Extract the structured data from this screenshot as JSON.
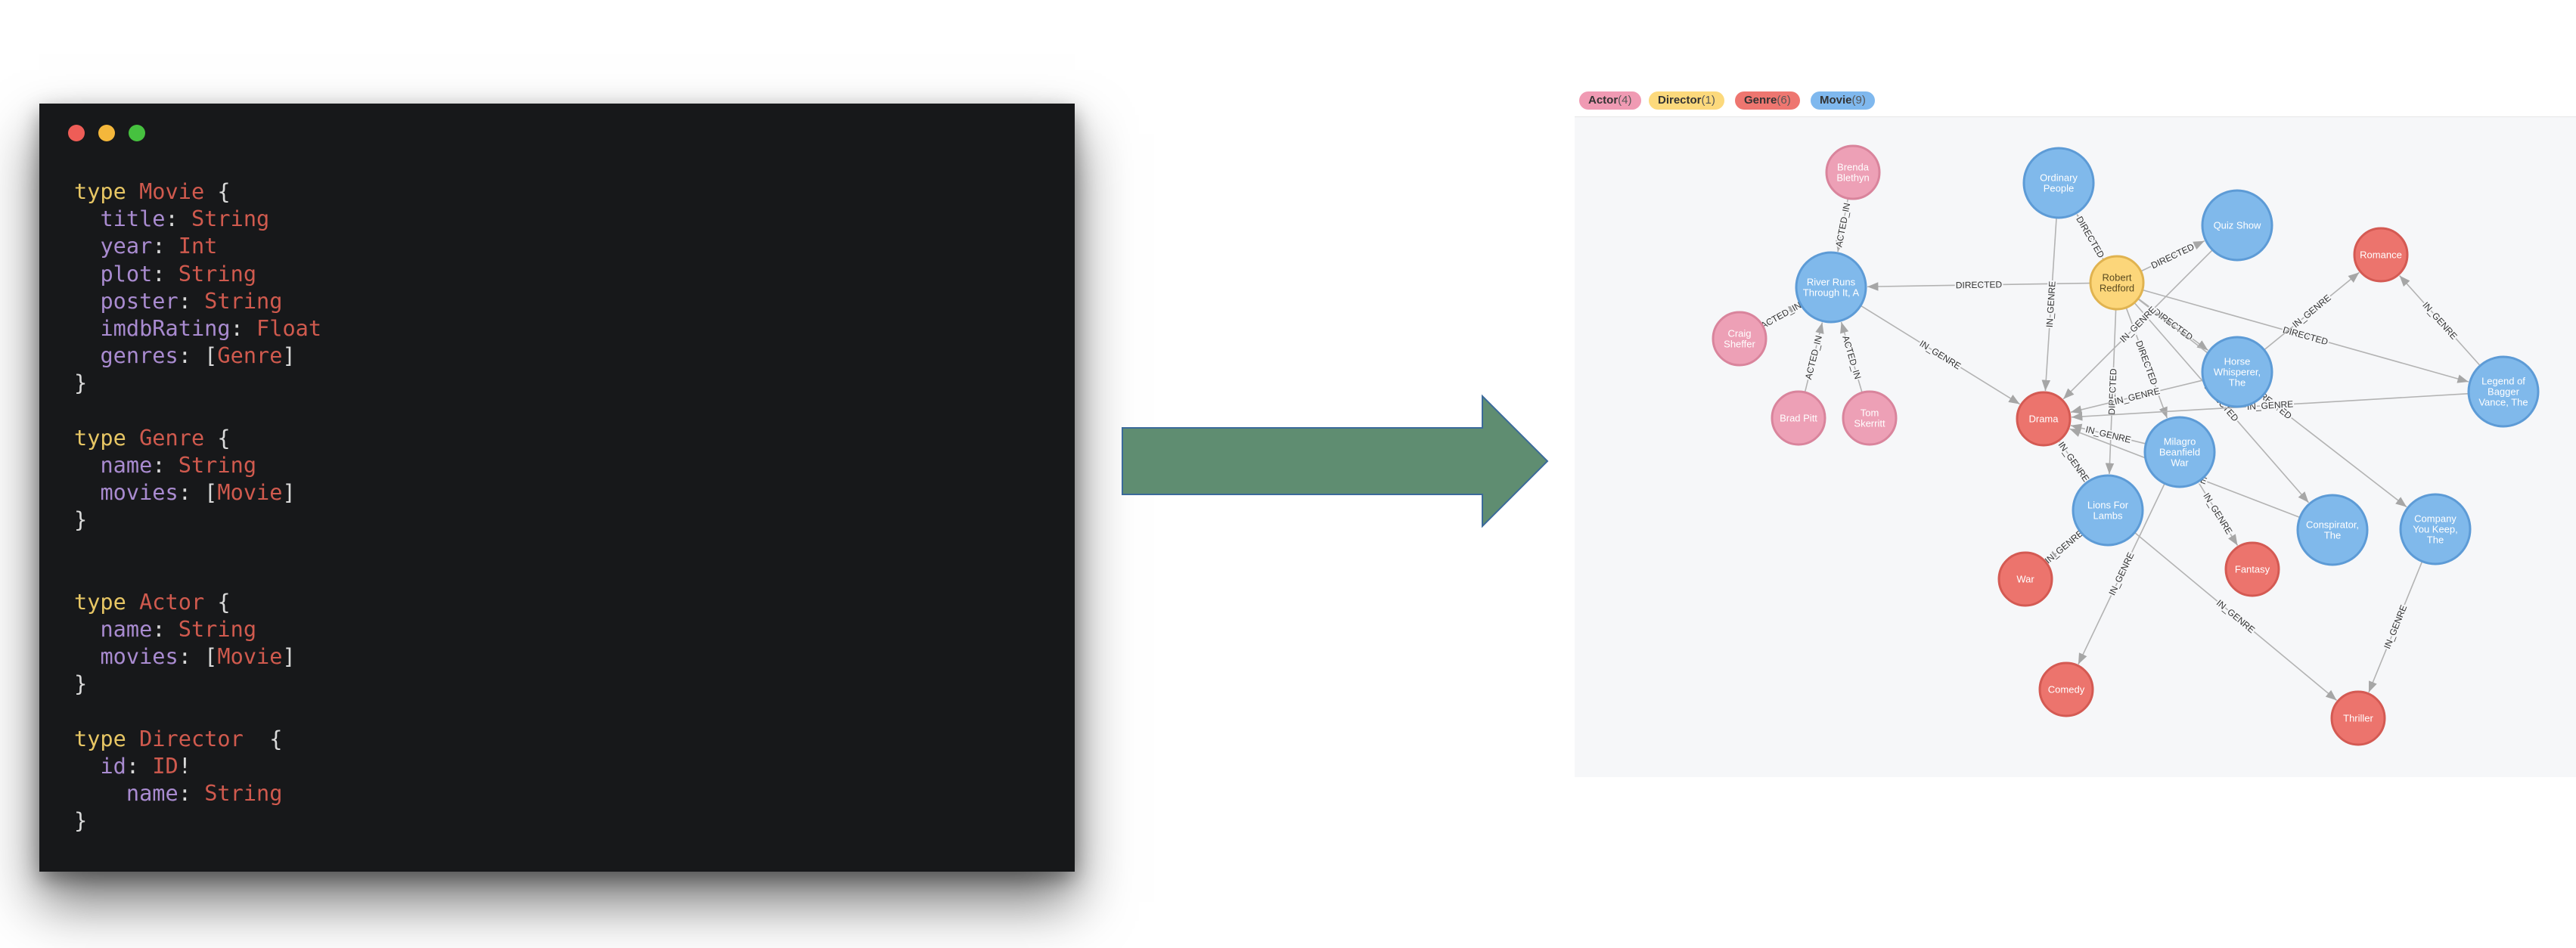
{
  "editor": {
    "window_dots": {
      "close": "#ee5d57",
      "minimize": "#f4b73b",
      "zoom": "#46c13f"
    },
    "colors": {
      "keyword": "#e7c664",
      "type": "#d05a4e",
      "field": "#a98bd0",
      "punct": "#d9d9d9"
    },
    "lines": [
      [
        [
          "kw",
          "type"
        ],
        [
          "pn",
          " "
        ],
        [
          "ty",
          "Movie"
        ],
        [
          "pn",
          " {"
        ]
      ],
      [
        [
          "pn",
          "  "
        ],
        [
          "fd",
          "title"
        ],
        [
          "pn",
          ": "
        ],
        [
          "ty",
          "String"
        ]
      ],
      [
        [
          "pn",
          "  "
        ],
        [
          "fd",
          "year"
        ],
        [
          "pn",
          ": "
        ],
        [
          "ty",
          "Int"
        ]
      ],
      [
        [
          "pn",
          "  "
        ],
        [
          "fd",
          "plot"
        ],
        [
          "pn",
          ": "
        ],
        [
          "ty",
          "String"
        ]
      ],
      [
        [
          "pn",
          "  "
        ],
        [
          "fd",
          "poster"
        ],
        [
          "pn",
          ": "
        ],
        [
          "ty",
          "String"
        ]
      ],
      [
        [
          "pn",
          "  "
        ],
        [
          "fd",
          "imdbRating"
        ],
        [
          "pn",
          ": "
        ],
        [
          "ty",
          "Float"
        ]
      ],
      [
        [
          "pn",
          "  "
        ],
        [
          "fd",
          "genres"
        ],
        [
          "pn",
          ": ["
        ],
        [
          "ty",
          "Genre"
        ],
        [
          "pn",
          "]"
        ]
      ],
      [
        [
          "pn",
          "}"
        ]
      ],
      [],
      [
        [
          "kw",
          "type"
        ],
        [
          "pn",
          " "
        ],
        [
          "ty",
          "Genre"
        ],
        [
          "pn",
          " {"
        ]
      ],
      [
        [
          "pn",
          "  "
        ],
        [
          "fd",
          "name"
        ],
        [
          "pn",
          ": "
        ],
        [
          "ty",
          "String"
        ]
      ],
      [
        [
          "pn",
          "  "
        ],
        [
          "fd",
          "movies"
        ],
        [
          "pn",
          ": ["
        ],
        [
          "ty",
          "Movie"
        ],
        [
          "pn",
          "]"
        ]
      ],
      [
        [
          "pn",
          "}"
        ]
      ],
      [],
      [],
      [
        [
          "kw",
          "type"
        ],
        [
          "pn",
          " "
        ],
        [
          "ty",
          "Actor"
        ],
        [
          "pn",
          " {"
        ]
      ],
      [
        [
          "pn",
          "  "
        ],
        [
          "fd",
          "name"
        ],
        [
          "pn",
          ": "
        ],
        [
          "ty",
          "String"
        ]
      ],
      [
        [
          "pn",
          "  "
        ],
        [
          "fd",
          "movies"
        ],
        [
          "pn",
          ": ["
        ],
        [
          "ty",
          "Movie"
        ],
        [
          "pn",
          "]"
        ]
      ],
      [
        [
          "pn",
          "}"
        ]
      ],
      [],
      [
        [
          "kw",
          "type"
        ],
        [
          "pn",
          " "
        ],
        [
          "ty",
          "Director"
        ],
        [
          "pn",
          "  {"
        ]
      ],
      [
        [
          "pn",
          "  "
        ],
        [
          "fd",
          "id"
        ],
        [
          "pn",
          ": "
        ],
        [
          "ty",
          "ID"
        ],
        [
          "pn",
          "!"
        ]
      ],
      [
        [
          "pn",
          "    "
        ],
        [
          "fd",
          "name"
        ],
        [
          "pn",
          ": "
        ],
        [
          "ty",
          "String"
        ]
      ],
      [
        [
          "pn",
          "}"
        ]
      ]
    ]
  },
  "arrow": {
    "fill": "#5f8d71",
    "stroke": "#3b6a9a"
  },
  "graph": {
    "legend": [
      {
        "label": "Actor",
        "count": "(4)",
        "color": "#f09ab3"
      },
      {
        "label": "Director",
        "count": "(1)",
        "color": "#fcd97c"
      },
      {
        "label": "Genre",
        "count": "(6)",
        "color": "#ee7670"
      },
      {
        "label": "Movie",
        "count": "(9)",
        "color": "#7fb8ee"
      }
    ],
    "kind_colors": {
      "actor": {
        "fill": "#eda0b6",
        "stroke": "#d9849c"
      },
      "director": {
        "fill": "#fcd67a",
        "stroke": "#e0b350"
      },
      "genre": {
        "fill": "#ec746d",
        "stroke": "#d45a53"
      },
      "movie": {
        "fill": "#80b9eb",
        "stroke": "#5d9bd6"
      }
    },
    "nodes": [
      {
        "id": "brenda",
        "kind": "actor",
        "label": [
          "Brenda",
          "Blethyn"
        ]
      },
      {
        "id": "craig",
        "kind": "actor",
        "label": [
          "Craig",
          "Sheffer"
        ]
      },
      {
        "id": "brad",
        "kind": "actor",
        "label": [
          "Brad Pitt"
        ]
      },
      {
        "id": "tom",
        "kind": "actor",
        "label": [
          "Tom",
          "Skerritt"
        ]
      },
      {
        "id": "robert",
        "kind": "director",
        "label": [
          "Robert",
          "Redford"
        ]
      },
      {
        "id": "river",
        "kind": "movie",
        "label": [
          "River Runs",
          "Through It, A"
        ]
      },
      {
        "id": "ordinary",
        "kind": "movie",
        "label": [
          "Ordinary",
          "People"
        ]
      },
      {
        "id": "quiz",
        "kind": "movie",
        "label": [
          "Quiz Show"
        ]
      },
      {
        "id": "horse",
        "kind": "movie",
        "label": [
          "Horse",
          "Whisperer,",
          "The"
        ]
      },
      {
        "id": "legend",
        "kind": "movie",
        "label": [
          "Legend of",
          "Bagger",
          "Vance, The"
        ]
      },
      {
        "id": "milagro",
        "kind": "movie",
        "label": [
          "Milagro",
          "Beanfield",
          "War"
        ]
      },
      {
        "id": "lions",
        "kind": "movie",
        "label": [
          "Lions For",
          "Lambs"
        ]
      },
      {
        "id": "conspirator",
        "kind": "movie",
        "label": [
          "Conspirator,",
          "The"
        ]
      },
      {
        "id": "company",
        "kind": "movie",
        "label": [
          "Company",
          "You Keep,",
          "The"
        ]
      },
      {
        "id": "drama",
        "kind": "genre",
        "label": [
          "Drama"
        ]
      },
      {
        "id": "romance",
        "kind": "genre",
        "label": [
          "Romance"
        ]
      },
      {
        "id": "war",
        "kind": "genre",
        "label": [
          "War"
        ]
      },
      {
        "id": "fantasy",
        "kind": "genre",
        "label": [
          "Fantasy"
        ]
      },
      {
        "id": "comedy",
        "kind": "genre",
        "label": [
          "Comedy"
        ]
      },
      {
        "id": "thriller",
        "kind": "genre",
        "label": [
          "Thriller"
        ]
      }
    ],
    "edges": [
      {
        "from": "brenda",
        "to": "river",
        "label": "ACTED_IN"
      },
      {
        "from": "craig",
        "to": "river",
        "label": "ACTED_IN"
      },
      {
        "from": "brad",
        "to": "river",
        "label": "ACTED_IN"
      },
      {
        "from": "tom",
        "to": "river",
        "label": "ACTED_IN"
      },
      {
        "from": "robert",
        "to": "river",
        "label": "DIRECTED"
      },
      {
        "from": "robert",
        "to": "ordinary",
        "label": "DIRECTED"
      },
      {
        "from": "robert",
        "to": "quiz",
        "label": "DIRECTED"
      },
      {
        "from": "robert",
        "to": "horse",
        "label": "DIRECTED"
      },
      {
        "from": "robert",
        "to": "legend",
        "label": "DIRECTED"
      },
      {
        "from": "robert",
        "to": "milagro",
        "label": "DIRECTED"
      },
      {
        "from": "robert",
        "to": "lions",
        "label": "DIRECTED"
      },
      {
        "from": "robert",
        "to": "conspirator",
        "label": "DIRECTED"
      },
      {
        "from": "robert",
        "to": "company",
        "label": "DIRECTED"
      },
      {
        "from": "river",
        "to": "drama",
        "label": "IN_GENRE"
      },
      {
        "from": "ordinary",
        "to": "drama",
        "label": "IN_GENRE"
      },
      {
        "from": "quiz",
        "to": "drama",
        "label": "IN_GENRE"
      },
      {
        "from": "horse",
        "to": "drama",
        "label": "IN_GENRE"
      },
      {
        "from": "horse",
        "to": "romance",
        "label": "IN_GENRE"
      },
      {
        "from": "legend",
        "to": "romance",
        "label": "IN_GENRE"
      },
      {
        "from": "legend",
        "to": "drama",
        "label": "IN_GENRE"
      },
      {
        "from": "milagro",
        "to": "drama",
        "label": "IN_GENRE"
      },
      {
        "from": "milagro",
        "to": "fantasy",
        "label": "IN_GENRE"
      },
      {
        "from": "conspirator",
        "to": "drama",
        "label": "IN_GENRE"
      },
      {
        "from": "lions",
        "to": "drama",
        "label": "IN_GENRE"
      },
      {
        "from": "lions",
        "to": "war",
        "label": "IN_GENRE"
      },
      {
        "from": "milagro",
        "to": "comedy",
        "label": "IN_GENRE"
      },
      {
        "from": "lions",
        "to": "thriller",
        "label": "IN_GENRE"
      },
      {
        "from": "company",
        "to": "thriller",
        "label": "IN_GENRE"
      }
    ]
  }
}
